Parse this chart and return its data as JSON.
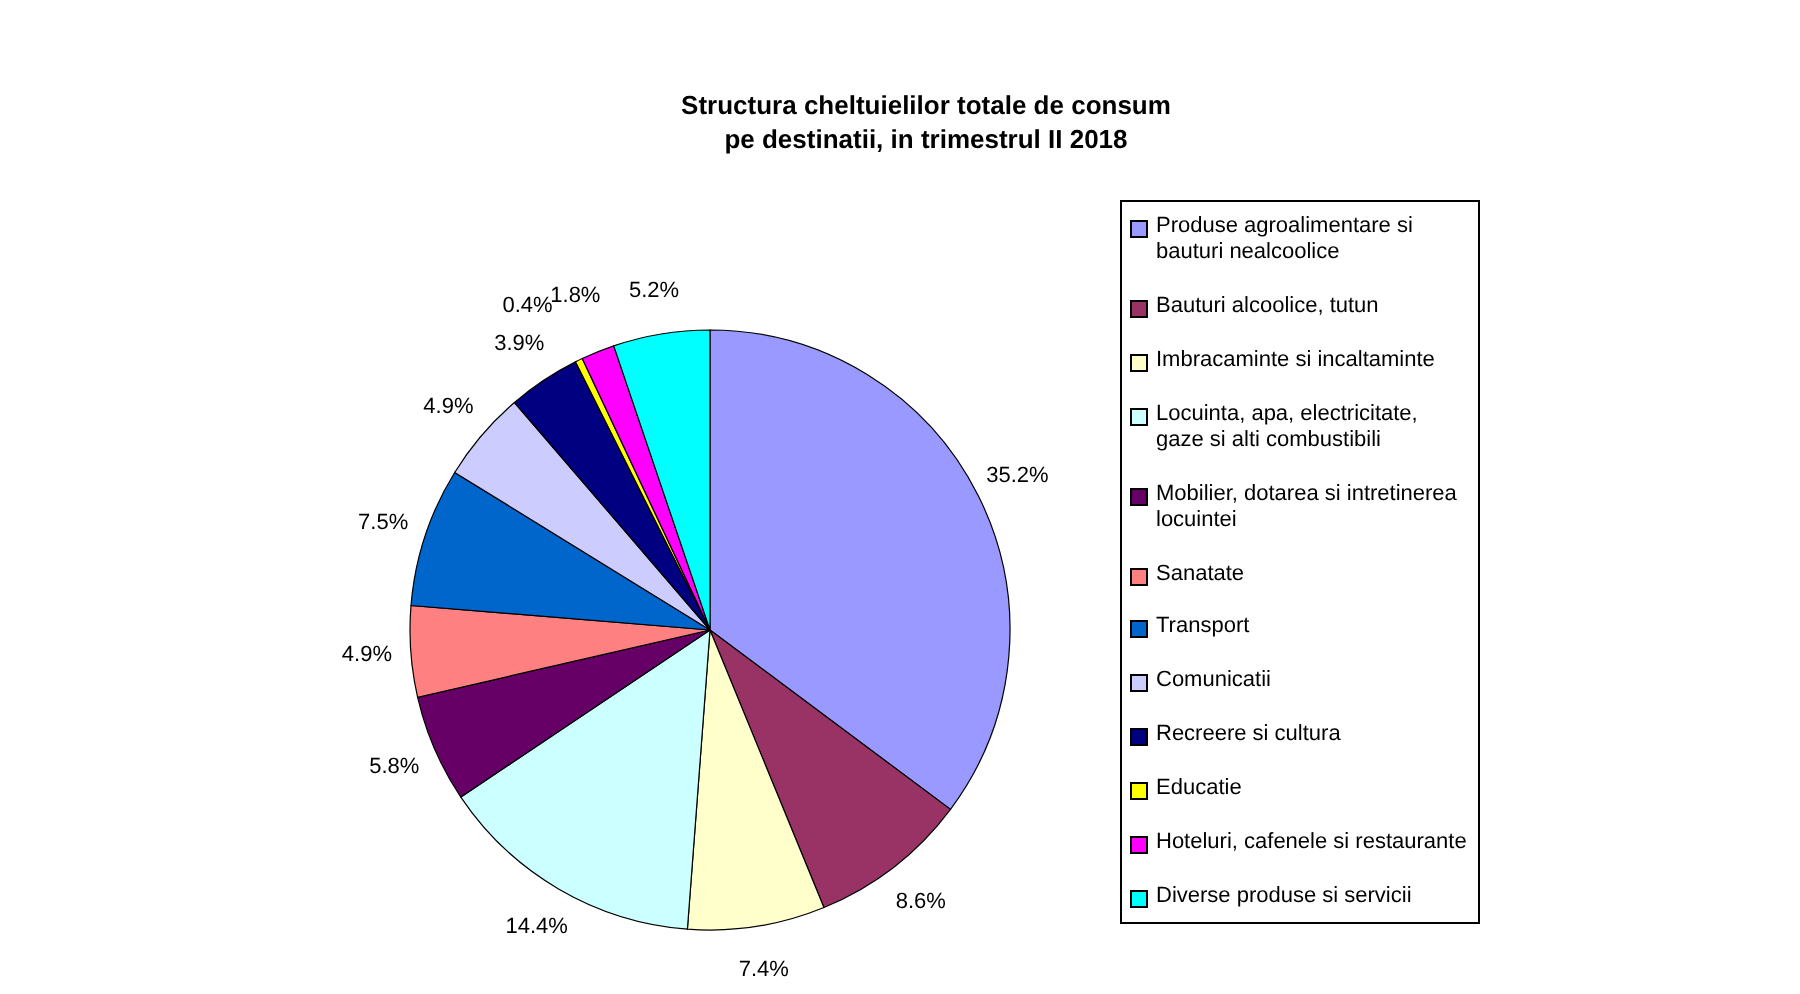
{
  "chart_data": {
    "type": "pie",
    "title": "Structura cheltuielilor totale de consum\npe destinatii, in trimestrul II 2018",
    "categories": [
      "Produse agroalimentare si bauturi nealcoolice",
      "Bauturi alcoolice, tutun",
      "Imbracaminte si incaltaminte",
      "Locuinta, apa, electricitate, gaze si alti combustibili",
      "Mobilier, dotarea si intretinerea locuintei",
      "Sanatate",
      "Transport",
      "Comunicatii",
      "Recreere si cultura",
      "Educatie",
      "Hoteluri, cafenele si restaurante",
      "Diverse produse si servicii"
    ],
    "values": [
      35.2,
      8.6,
      7.4,
      14.4,
      5.8,
      4.9,
      7.5,
      4.9,
      3.9,
      0.4,
      1.8,
      5.2
    ],
    "value_labels": [
      "35.2%",
      "8.6%",
      "7.4%",
      "14.4%",
      "5.8%",
      "4.9%",
      "7.5%",
      "4.9%",
      "3.9%",
      "0.4%",
      "1.8%",
      "5.2%"
    ],
    "colors": [
      "#9999ff",
      "#993366",
      "#ffffcc",
      "#ccffff",
      "#660066",
      "#ff8080",
      "#0066cc",
      "#ccccff",
      "#000080",
      "#ffff00",
      "#ff00ff",
      "#00ffff"
    ],
    "legend": "right"
  }
}
